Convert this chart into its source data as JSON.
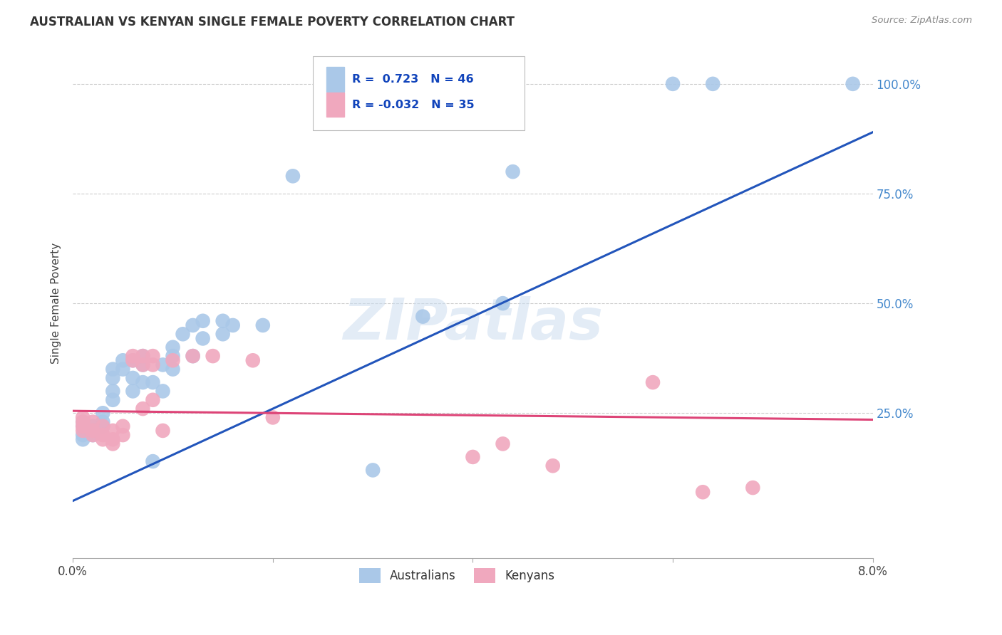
{
  "title": "AUSTRALIAN VS KENYAN SINGLE FEMALE POVERTY CORRELATION CHART",
  "source": "Source: ZipAtlas.com",
  "ylabel": "Single Female Poverty",
  "watermark": "ZIPatlas",
  "xlim": [
    0.0,
    0.08
  ],
  "ylim": [
    -0.08,
    1.08
  ],
  "aus_R": 0.723,
  "aus_N": 46,
  "ken_R": -0.032,
  "ken_N": 35,
  "legend_label_aus": "Australians",
  "legend_label_ken": "Kenyans",
  "aus_color": "#aac8e8",
  "ken_color": "#f0a8be",
  "aus_line_color": "#2255bb",
  "ken_line_color": "#dd4477",
  "background_color": "#ffffff",
  "grid_color": "#cccccc",
  "title_color": "#333333",
  "right_axis_color": "#4488cc",
  "aus_line_intercept": 0.05,
  "aus_line_slope": 10.5,
  "ken_line_intercept": 0.255,
  "ken_line_slope": -0.25,
  "aus_scatter": [
    [
      0.001,
      0.2
    ],
    [
      0.001,
      0.22
    ],
    [
      0.001,
      0.23
    ],
    [
      0.001,
      0.19
    ],
    [
      0.002,
      0.21
    ],
    [
      0.002,
      0.22
    ],
    [
      0.002,
      0.2
    ],
    [
      0.003,
      0.23
    ],
    [
      0.003,
      0.25
    ],
    [
      0.003,
      0.22
    ],
    [
      0.004,
      0.3
    ],
    [
      0.004,
      0.33
    ],
    [
      0.004,
      0.28
    ],
    [
      0.004,
      0.35
    ],
    [
      0.005,
      0.35
    ],
    [
      0.005,
      0.37
    ],
    [
      0.006,
      0.33
    ],
    [
      0.006,
      0.37
    ],
    [
      0.006,
      0.3
    ],
    [
      0.007,
      0.36
    ],
    [
      0.007,
      0.38
    ],
    [
      0.007,
      0.32
    ],
    [
      0.008,
      0.14
    ],
    [
      0.008,
      0.32
    ],
    [
      0.009,
      0.36
    ],
    [
      0.009,
      0.3
    ],
    [
      0.01,
      0.4
    ],
    [
      0.01,
      0.35
    ],
    [
      0.01,
      0.38
    ],
    [
      0.011,
      0.43
    ],
    [
      0.012,
      0.45
    ],
    [
      0.012,
      0.38
    ],
    [
      0.013,
      0.46
    ],
    [
      0.013,
      0.42
    ],
    [
      0.015,
      0.43
    ],
    [
      0.015,
      0.46
    ],
    [
      0.016,
      0.45
    ],
    [
      0.019,
      0.45
    ],
    [
      0.022,
      0.79
    ],
    [
      0.03,
      0.12
    ],
    [
      0.035,
      0.47
    ],
    [
      0.043,
      0.5
    ],
    [
      0.044,
      0.8
    ],
    [
      0.06,
      1.0
    ],
    [
      0.064,
      1.0
    ],
    [
      0.078,
      1.0
    ]
  ],
  "ken_scatter": [
    [
      0.001,
      0.24
    ],
    [
      0.001,
      0.23
    ],
    [
      0.001,
      0.22
    ],
    [
      0.001,
      0.21
    ],
    [
      0.002,
      0.23
    ],
    [
      0.002,
      0.21
    ],
    [
      0.002,
      0.2
    ],
    [
      0.003,
      0.2
    ],
    [
      0.003,
      0.22
    ],
    [
      0.003,
      0.19
    ],
    [
      0.004,
      0.19
    ],
    [
      0.004,
      0.21
    ],
    [
      0.004,
      0.18
    ],
    [
      0.005,
      0.2
    ],
    [
      0.005,
      0.22
    ],
    [
      0.006,
      0.37
    ],
    [
      0.006,
      0.38
    ],
    [
      0.007,
      0.36
    ],
    [
      0.007,
      0.38
    ],
    [
      0.007,
      0.26
    ],
    [
      0.008,
      0.38
    ],
    [
      0.008,
      0.36
    ],
    [
      0.008,
      0.28
    ],
    [
      0.009,
      0.21
    ],
    [
      0.01,
      0.37
    ],
    [
      0.012,
      0.38
    ],
    [
      0.014,
      0.38
    ],
    [
      0.018,
      0.37
    ],
    [
      0.02,
      0.24
    ],
    [
      0.04,
      0.15
    ],
    [
      0.043,
      0.18
    ],
    [
      0.048,
      0.13
    ],
    [
      0.058,
      0.32
    ],
    [
      0.063,
      0.07
    ],
    [
      0.068,
      0.08
    ]
  ]
}
